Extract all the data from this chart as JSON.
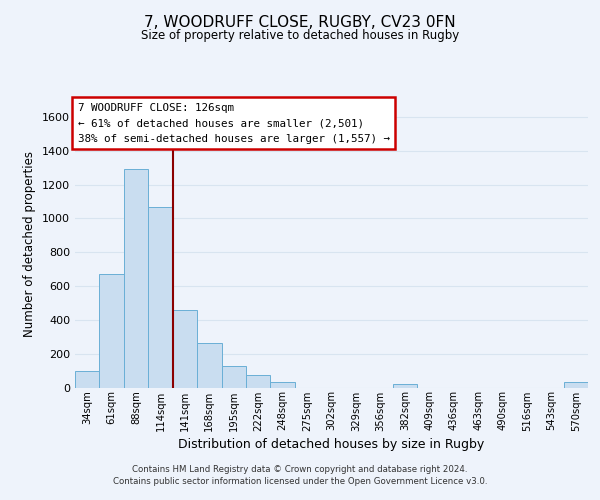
{
  "title": "7, WOODRUFF CLOSE, RUGBY, CV23 0FN",
  "subtitle": "Size of property relative to detached houses in Rugby",
  "xlabel": "Distribution of detached houses by size in Rugby",
  "ylabel": "Number of detached properties",
  "footer_line1": "Contains HM Land Registry data © Crown copyright and database right 2024.",
  "footer_line2": "Contains public sector information licensed under the Open Government Licence v3.0.",
  "bar_labels": [
    "34sqm",
    "61sqm",
    "88sqm",
    "114sqm",
    "141sqm",
    "168sqm",
    "195sqm",
    "222sqm",
    "248sqm",
    "275sqm",
    "302sqm",
    "329sqm",
    "356sqm",
    "382sqm",
    "409sqm",
    "436sqm",
    "463sqm",
    "490sqm",
    "516sqm",
    "543sqm",
    "570sqm"
  ],
  "bar_heights": [
    100,
    670,
    1290,
    1070,
    460,
    265,
    130,
    75,
    30,
    0,
    0,
    0,
    0,
    20,
    0,
    0,
    0,
    0,
    0,
    0,
    30
  ],
  "bar_color": "#c9ddf0",
  "bar_edge_color": "#6aafd6",
  "bar_width": 1.0,
  "property_label": "7 WOODRUFF CLOSE: 126sqm",
  "annotation_line1": "← 61% of detached houses are smaller (2,501)",
  "annotation_line2": "38% of semi-detached houses are larger (1,557) →",
  "vline_color": "#8b0000",
  "vline_x": 3.5,
  "ylim": [
    0,
    1700
  ],
  "yticks": [
    0,
    200,
    400,
    600,
    800,
    1000,
    1200,
    1400,
    1600
  ],
  "bg_color": "#eef3fb",
  "plot_bg_color": "#eef3fb",
  "grid_color": "#d8e4f0"
}
